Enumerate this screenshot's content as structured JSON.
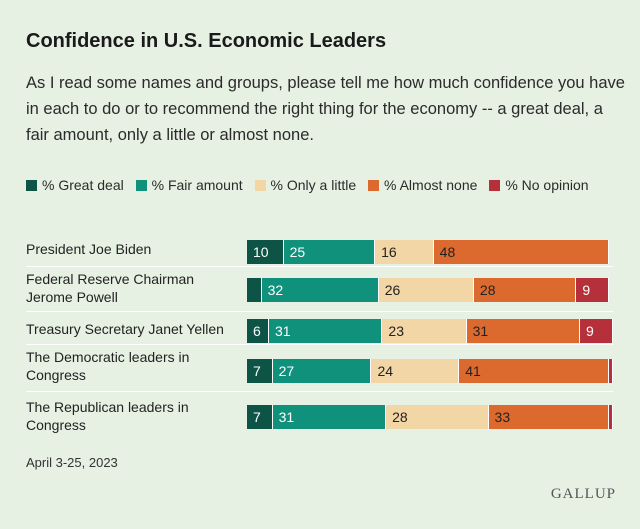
{
  "title": "Confidence in U.S. Economic Leaders",
  "subtitle": "As I read some names and groups, please tell me how much confidence you have in each to do or to recommend the right thing for the economy -- a great deal, a fair amount, only a little or almost none.",
  "footer": {
    "date": "April 3-25, 2023",
    "brand": "GALLUP"
  },
  "chart_data": {
    "type": "bar",
    "orientation": "horizontal",
    "stacked": true,
    "title": "Confidence in U.S. Economic Leaders",
    "xlim": [
      0,
      100
    ],
    "categories": [
      "President Joe Biden",
      "Federal Reserve Chairman Jerome Powell",
      "Treasury Secretary Janet Yellen",
      "The Democratic leaders in Congress",
      "The Republican leaders in Congress"
    ],
    "series": [
      {
        "name": "% Great deal",
        "color": "#0d5446",
        "text_color": "#ffffff",
        "values": [
          10,
          4,
          6,
          7,
          7
        ],
        "labels": [
          "10",
          "",
          "6",
          "7",
          "7"
        ]
      },
      {
        "name": "% Fair amount",
        "color": "#0f917c",
        "text_color": "#ffffff",
        "values": [
          25,
          32,
          31,
          27,
          31
        ],
        "labels": [
          "25",
          "32",
          "31",
          "27",
          "31"
        ]
      },
      {
        "name": "% Only a little",
        "color": "#f3d6a5",
        "text_color": "#222222",
        "values": [
          16,
          26,
          23,
          24,
          28
        ],
        "labels": [
          "16",
          "26",
          "23",
          "24",
          "28"
        ]
      },
      {
        "name": "% Almost none",
        "color": "#dc6a2e",
        "text_color": "#222222",
        "values": [
          48,
          28,
          31,
          41,
          33
        ],
        "labels": [
          "48",
          "28",
          "31",
          "41",
          "33"
        ]
      },
      {
        "name": "% No opinion",
        "color": "#b5303b",
        "text_color": "#ffffff",
        "values": [
          0,
          9,
          9,
          1,
          1
        ],
        "labels": [
          "",
          "9",
          "9",
          "",
          ""
        ]
      }
    ]
  }
}
